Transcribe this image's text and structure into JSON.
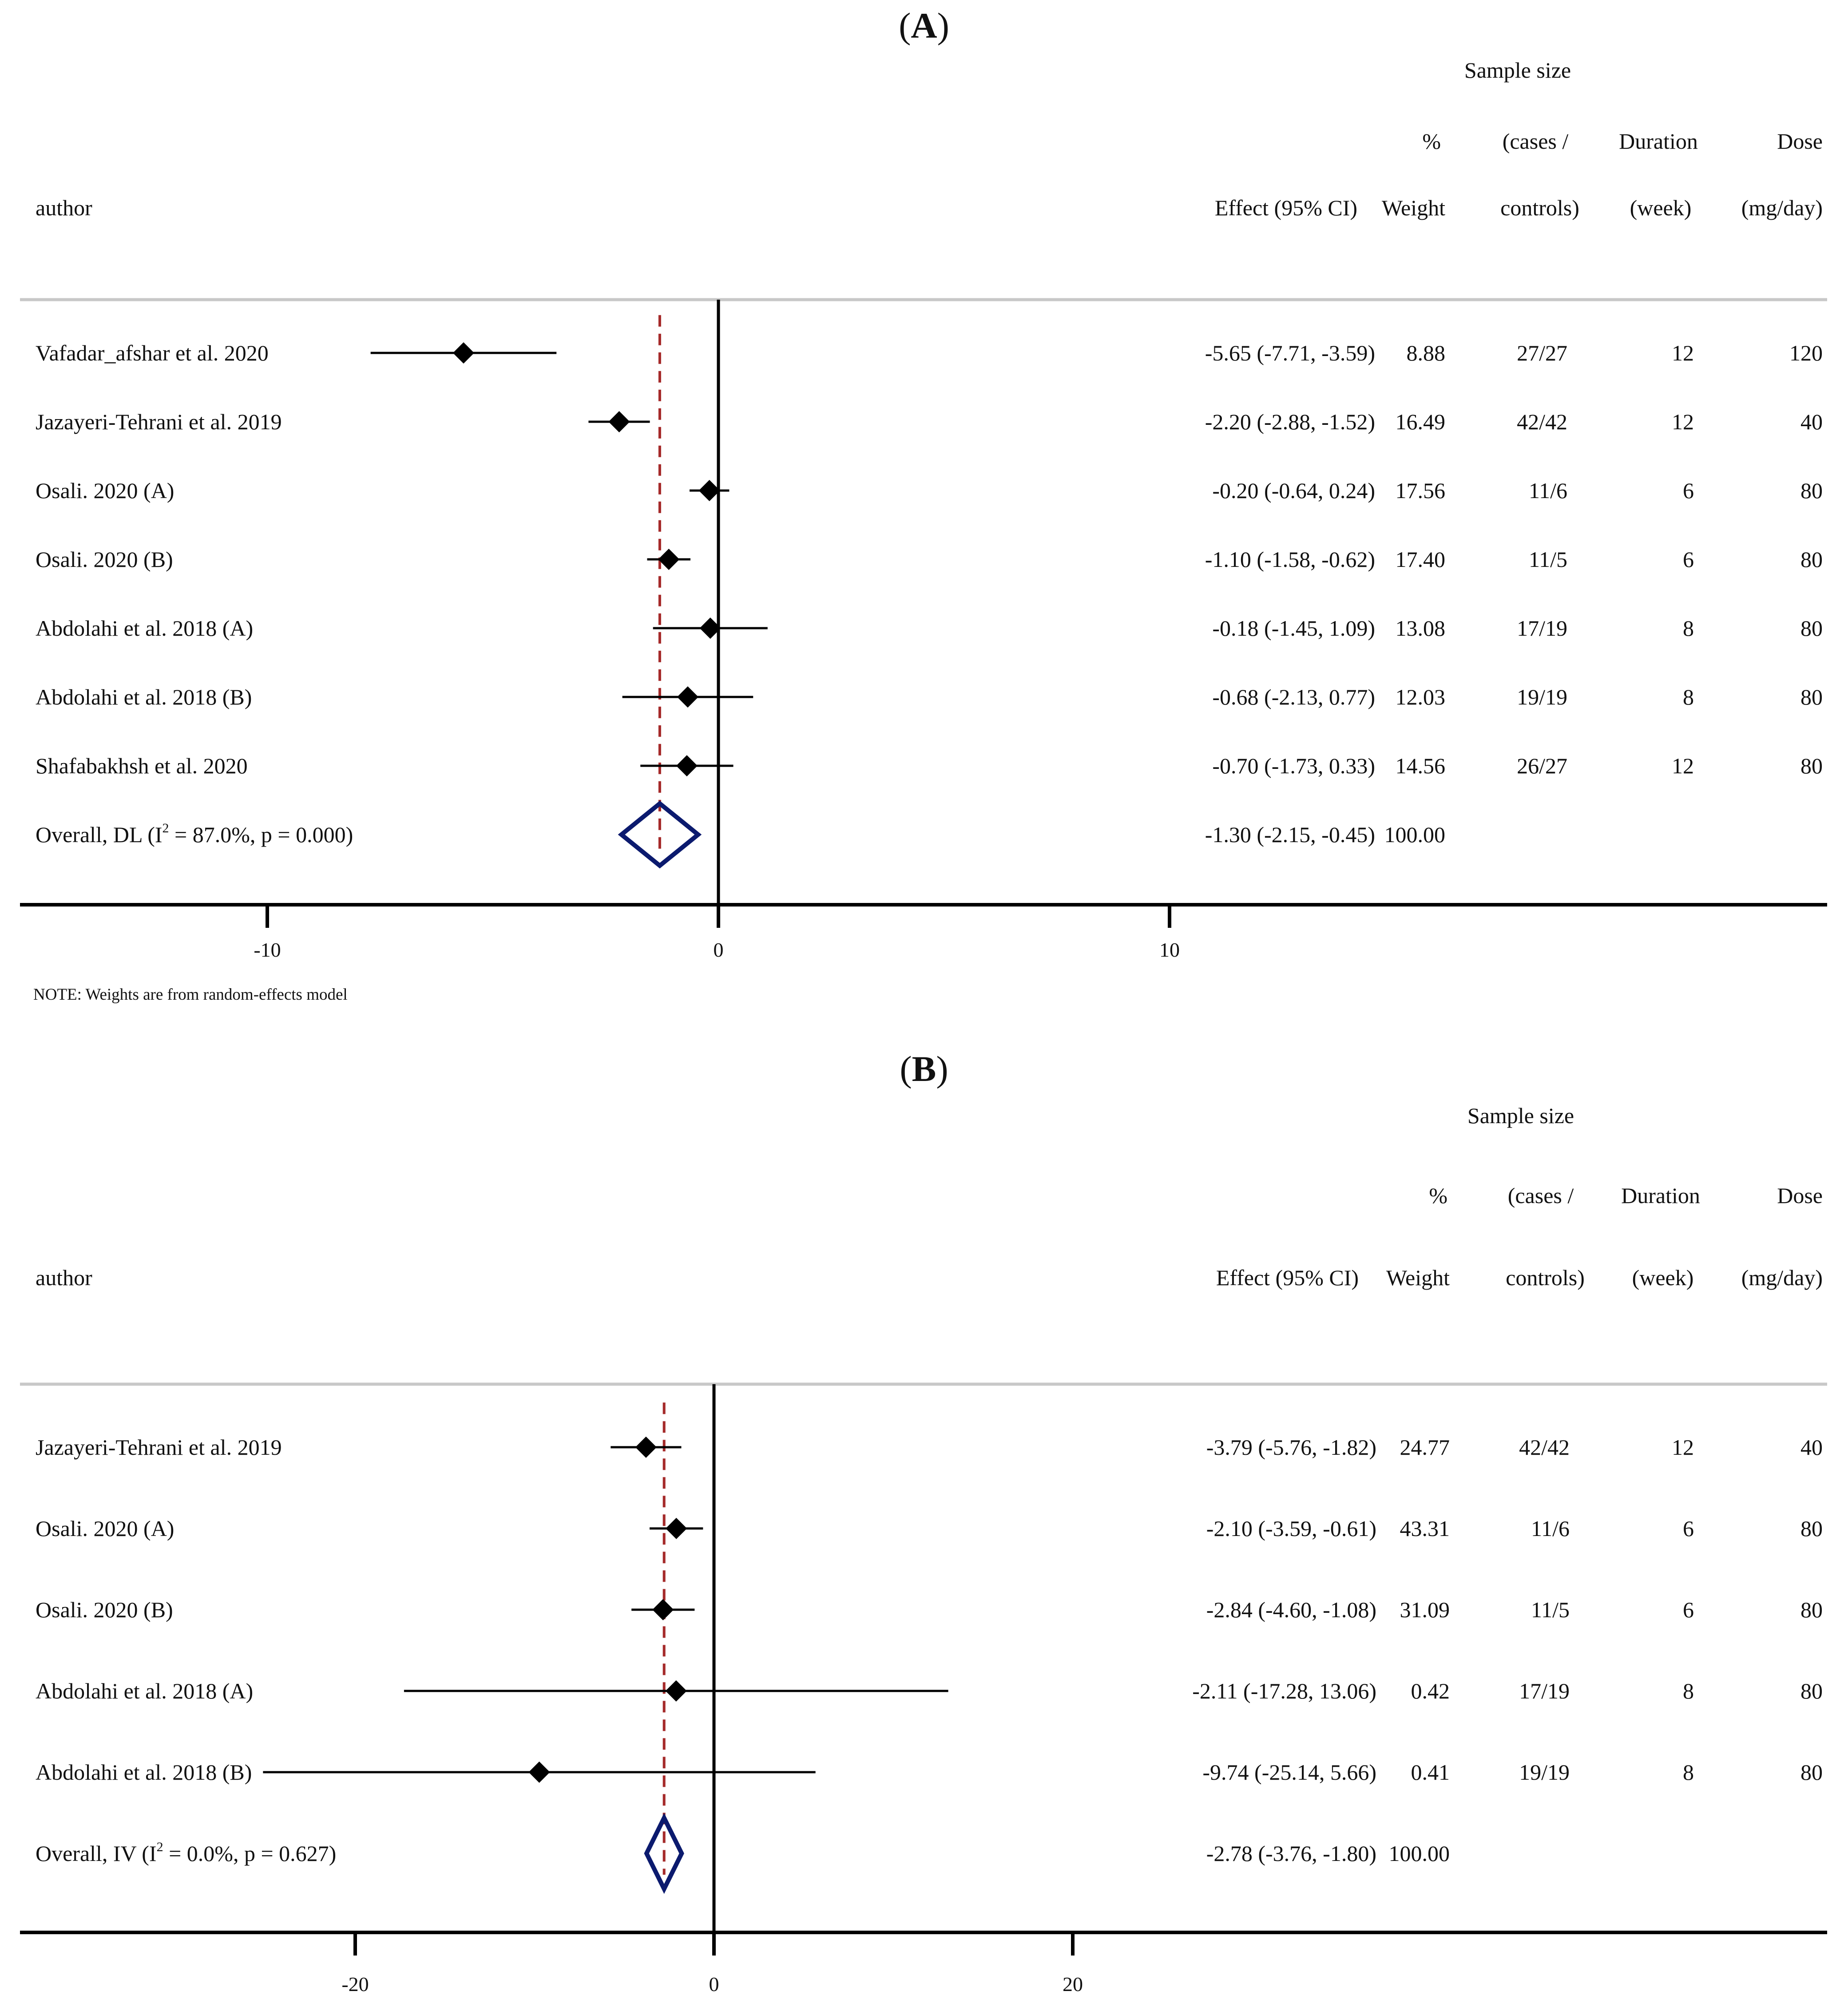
{
  "colors": {
    "point": "#000000",
    "ci_line": "#000000",
    "null_line": "#000000",
    "overall_line": "#a52a2a",
    "diamond": "#0b1a6e",
    "separator": "#c8c8c8",
    "axis": "#000000"
  },
  "chart_data": [
    {
      "type": "forest",
      "panel": "A",
      "headers": {
        "sample_size": "Sample size",
        "percent": "%",
        "cases_open": "(cases /",
        "duration": "Duration",
        "dose": "Dose",
        "author": "author",
        "effect": "Effect (95% CI)",
        "weight": "Weight",
        "controls": "controls)",
        "week": "(week)",
        "mgday": "(mg/day)"
      },
      "xlim": [
        -15.3,
        24.8
      ],
      "ticks": [
        -10,
        0,
        10
      ],
      "tick_labels": [
        "-10",
        "0",
        "10"
      ],
      "null_value": 0,
      "studies": [
        {
          "author": "Vafadar_afshar et al. 2020",
          "effect": -5.65,
          "lower": -7.71,
          "upper": -3.59,
          "ci_text": "-5.65 (-7.71, -3.59)",
          "weight": "8.88",
          "sample": "27/27",
          "duration": "12",
          "dose": "120"
        },
        {
          "author": "Jazayeri-Tehrani et al. 2019",
          "effect": -2.2,
          "lower": -2.88,
          "upper": -1.52,
          "ci_text": "-2.20 (-2.88, -1.52)",
          "weight": "16.49",
          "sample": "42/42",
          "duration": "12",
          "dose": "40"
        },
        {
          "author": "Osali. 2020 (A)",
          "effect": -0.2,
          "lower": -0.64,
          "upper": 0.24,
          "ci_text": "-0.20 (-0.64, 0.24)",
          "weight": "17.56",
          "sample": "11/6",
          "duration": "6",
          "dose": "80"
        },
        {
          "author": "Osali. 2020 (B)",
          "effect": -1.1,
          "lower": -1.58,
          "upper": -0.62,
          "ci_text": "-1.10 (-1.58, -0.62)",
          "weight": "17.40",
          "sample": "11/5",
          "duration": "6",
          "dose": "80"
        },
        {
          "author": "Abdolahi et al. 2018 (A)",
          "effect": -0.18,
          "lower": -1.45,
          "upper": 1.09,
          "ci_text": "-0.18 (-1.45, 1.09)",
          "weight": "13.08",
          "sample": "17/19",
          "duration": "8",
          "dose": "80"
        },
        {
          "author": "Abdolahi et al. 2018 (B)",
          "effect": -0.68,
          "lower": -2.13,
          "upper": 0.77,
          "ci_text": "-0.68 (-2.13, 0.77)",
          "weight": "12.03",
          "sample": "19/19",
          "duration": "8",
          "dose": "80"
        },
        {
          "author": "Shafabakhsh et al. 2020",
          "effect": -0.7,
          "lower": -1.73,
          "upper": 0.33,
          "ci_text": "-0.70 (-1.73, 0.33)",
          "weight": "14.56",
          "sample": "26/27",
          "duration": "12",
          "dose": "80"
        }
      ],
      "overall": {
        "label_pre": "Overall, DL (I",
        "label_sup": "2",
        "label_post": " = 87.0%, p = 0.000)",
        "effect": -1.3,
        "lower": -2.15,
        "upper": -0.45,
        "ci_text": "-1.30 (-2.15, -0.45)",
        "weight": "100.00"
      },
      "note": "NOTE: Weights are from random-effects model"
    },
    {
      "type": "forest",
      "panel": "B",
      "headers": {
        "sample_size": "Sample size",
        "percent": "%",
        "cases_open": "(cases /",
        "duration": "Duration",
        "dose": "Dose",
        "author": "author",
        "effect": "Effect (95% CI)",
        "weight": "Weight",
        "controls": "controls)",
        "week": "(week)",
        "mgday": "(mg/day)"
      },
      "xlim": [
        -38.8,
        62.0
      ],
      "ticks": [
        -20,
        0,
        20
      ],
      "tick_labels": [
        "-20",
        "0",
        "20"
      ],
      "null_value": 0,
      "studies": [
        {
          "author": "Jazayeri-Tehrani et al. 2019",
          "effect": -3.79,
          "lower": -5.76,
          "upper": -1.82,
          "ci_text": "-3.79 (-5.76, -1.82)",
          "weight": "24.77",
          "sample": "42/42",
          "duration": "12",
          "dose": "40"
        },
        {
          "author": "Osali. 2020 (A)",
          "effect": -2.1,
          "lower": -3.59,
          "upper": -0.61,
          "ci_text": "-2.10 (-3.59, -0.61)",
          "weight": "43.31",
          "sample": "11/6",
          "duration": "6",
          "dose": "80"
        },
        {
          "author": "Osali. 2020 (B)",
          "effect": -2.84,
          "lower": -4.6,
          "upper": -1.08,
          "ci_text": "-2.84 (-4.60, -1.08)",
          "weight": "31.09",
          "sample": "11/5",
          "duration": "6",
          "dose": "80"
        },
        {
          "author": "Abdolahi et al. 2018 (A)",
          "effect": -2.11,
          "lower": -17.28,
          "upper": 13.06,
          "ci_text": "-2.11 (-17.28, 13.06)",
          "weight": "0.42",
          "sample": "17/19",
          "duration": "8",
          "dose": "80"
        },
        {
          "author": "Abdolahi et al. 2018 (B)",
          "effect": -9.74,
          "lower": -25.14,
          "upper": 5.66,
          "ci_text": "-9.74 (-25.14, 5.66)",
          "weight": "0.41",
          "sample": "19/19",
          "duration": "8",
          "dose": "80"
        }
      ],
      "overall": {
        "label_pre": "Overall, IV (I",
        "label_sup": "2",
        "label_post": " = 0.0%, p = 0.627)",
        "effect": -2.78,
        "lower": -3.76,
        "upper": -1.8,
        "ci_text": "-2.78 (-3.76, -1.80)",
        "weight": "100.00"
      },
      "note": ""
    }
  ]
}
